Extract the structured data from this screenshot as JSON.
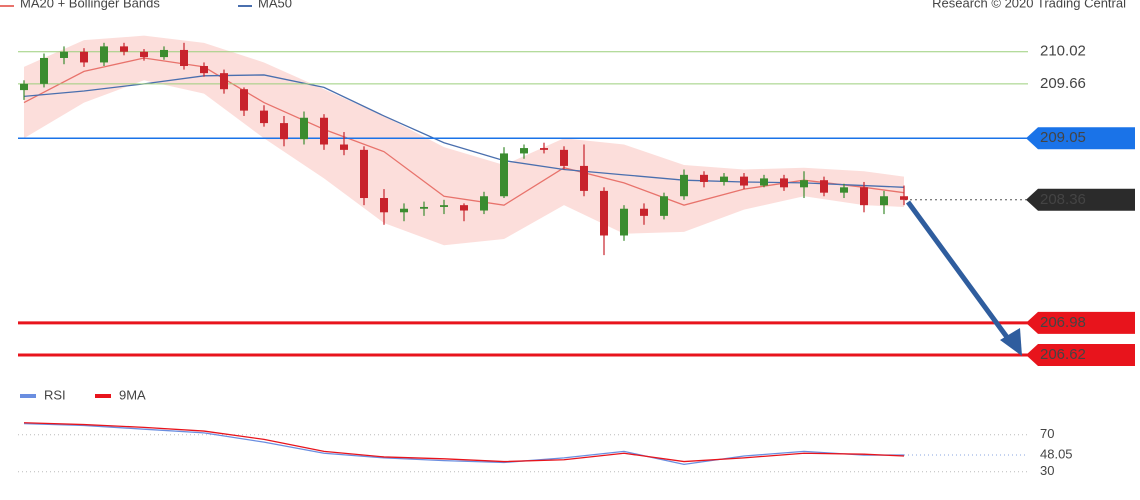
{
  "chart_data": [
    {
      "type": "candlestick",
      "legend": [
        "MA20 + Bollinger Bands",
        "MA50"
      ],
      "source": "Research © 2020 Trading Central",
      "ylim": [
        206.34,
        210.6
      ],
      "up_color": "#3b8c2f",
      "down_color": "#c8232c",
      "open": [
        209.59,
        209.66,
        209.95,
        210.02,
        209.9,
        210.08,
        210.02,
        209.96,
        210.04,
        209.86,
        209.78,
        209.6,
        209.36,
        209.22,
        209.04,
        209.28,
        208.98,
        208.92,
        208.38,
        208.22,
        208.26,
        208.28,
        208.3,
        208.24,
        208.4,
        208.88,
        208.94,
        208.92,
        208.74,
        208.46,
        207.96,
        208.26,
        208.18,
        208.4,
        208.64,
        208.56,
        208.62,
        208.52,
        208.6,
        208.5,
        208.58,
        208.44,
        208.5,
        208.3,
        208.4
      ],
      "high": [
        209.7,
        210.0,
        210.08,
        210.06,
        210.12,
        210.12,
        210.05,
        210.08,
        210.12,
        209.9,
        209.82,
        209.62,
        209.42,
        209.3,
        209.35,
        209.32,
        209.12,
        208.96,
        208.48,
        208.32,
        208.34,
        208.36,
        208.32,
        208.45,
        208.95,
        208.98,
        209.0,
        208.96,
        208.98,
        208.5,
        208.3,
        208.32,
        208.44,
        208.7,
        208.68,
        208.66,
        208.66,
        208.64,
        208.64,
        208.68,
        208.62,
        208.54,
        208.56,
        208.46,
        208.52
      ],
      "low": [
        209.48,
        209.62,
        209.88,
        209.85,
        209.86,
        209.98,
        209.92,
        209.93,
        209.82,
        209.74,
        209.55,
        209.3,
        209.18,
        208.96,
        208.98,
        208.92,
        208.86,
        208.3,
        208.08,
        208.12,
        208.18,
        208.2,
        208.12,
        208.2,
        208.38,
        208.82,
        208.88,
        208.7,
        208.4,
        207.74,
        207.9,
        208.08,
        208.14,
        208.36,
        208.5,
        208.52,
        208.48,
        208.5,
        208.46,
        208.38,
        208.4,
        208.38,
        208.22,
        208.2,
        208.3
      ],
      "close": [
        209.66,
        209.95,
        210.02,
        209.9,
        210.08,
        210.02,
        209.96,
        210.04,
        209.86,
        209.78,
        209.6,
        209.36,
        209.22,
        209.04,
        209.28,
        208.98,
        208.92,
        208.38,
        208.22,
        208.26,
        208.28,
        208.3,
        208.24,
        208.4,
        208.88,
        208.94,
        208.92,
        208.74,
        208.46,
        207.96,
        208.26,
        208.18,
        208.4,
        208.64,
        208.56,
        208.62,
        208.52,
        208.6,
        208.5,
        208.58,
        208.44,
        208.5,
        208.3,
        208.4,
        208.36
      ],
      "series": [
        {
          "name": "MA20 + Bollinger Bands",
          "color": "#e8736c",
          "band_color": "#fbd3cf",
          "x": [
            0,
            3,
            6,
            9,
            12,
            15,
            18,
            21,
            24,
            27,
            30,
            33,
            36,
            39,
            42,
            44
          ],
          "values": [
            209.45,
            209.8,
            209.95,
            209.85,
            209.45,
            209.15,
            208.9,
            208.4,
            208.3,
            208.72,
            208.55,
            208.3,
            208.48,
            208.58,
            208.5,
            208.44
          ],
          "upper": [
            209.85,
            210.15,
            210.2,
            210.12,
            209.9,
            209.6,
            209.3,
            208.95,
            208.75,
            209.05,
            208.98,
            208.75,
            208.7,
            208.72,
            208.68,
            208.62
          ],
          "lower": [
            209.05,
            209.45,
            209.7,
            209.55,
            209.05,
            208.6,
            208.1,
            207.85,
            207.92,
            208.3,
            207.98,
            208.0,
            208.25,
            208.4,
            208.3,
            208.28
          ]
        },
        {
          "name": "MA50",
          "color": "#4a6fae",
          "x": [
            0,
            3,
            6,
            9,
            12,
            15,
            18,
            21,
            24,
            27,
            30,
            33,
            36,
            39,
            42,
            44
          ],
          "values": [
            209.52,
            209.58,
            209.66,
            209.75,
            209.76,
            209.62,
            209.3,
            209.0,
            208.8,
            208.7,
            208.64,
            208.58,
            208.56,
            208.55,
            208.52,
            208.5
          ]
        }
      ],
      "levels": [
        {
          "value": 210.02,
          "color": "#9ccf7c",
          "style": "line"
        },
        {
          "value": 209.66,
          "color": "#9ccf7c",
          "style": "line"
        },
        {
          "value": 209.05,
          "color": "#1a73e8",
          "style": "box"
        },
        {
          "value": 208.36,
          "color": "#2b2b2b",
          "style": "dotted"
        },
        {
          "value": 206.98,
          "color": "#e8141c",
          "style": "box"
        },
        {
          "value": 206.62,
          "color": "#e8141c",
          "style": "box"
        }
      ]
    },
    {
      "type": "line",
      "ylim": [
        20,
        100
      ],
      "yticks": [
        70,
        30
      ],
      "x": [
        0,
        3,
        6,
        9,
        12,
        15,
        18,
        21,
        24,
        27,
        30,
        33,
        36,
        39,
        42,
        44
      ],
      "series": [
        {
          "name": "RSI",
          "color": "#6a8ee0",
          "values": [
            82,
            80,
            76,
            72,
            62,
            50,
            45,
            42,
            40,
            45,
            52,
            38,
            47,
            52,
            48,
            48.05
          ]
        },
        {
          "name": "9MA",
          "color": "#e8141c",
          "values": [
            83,
            81,
            78,
            74,
            65,
            52,
            46,
            44,
            41,
            43,
            50,
            41,
            45,
            50,
            49,
            47
          ]
        }
      ],
      "last_label": "48.05"
    }
  ]
}
